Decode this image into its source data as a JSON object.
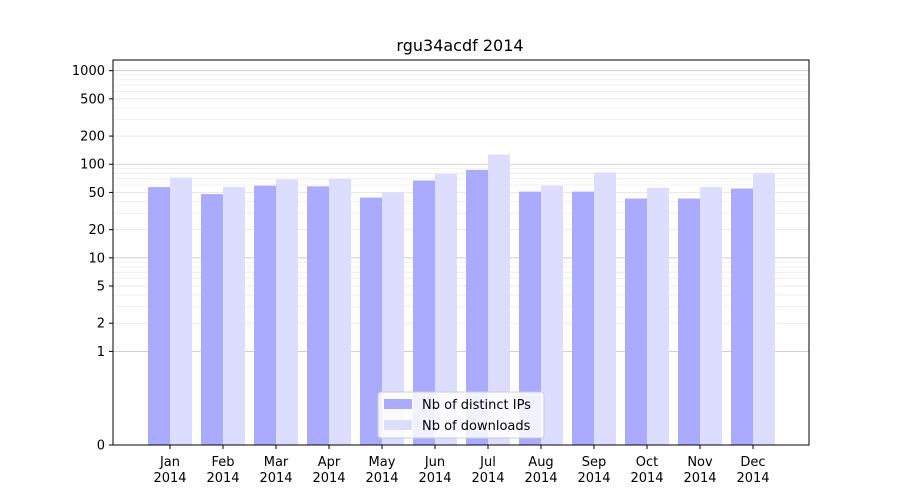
{
  "chart_data": {
    "type": "bar",
    "title": "rgu34acdf 2014",
    "xlabel": "",
    "ylabel": "",
    "yscale": "symlog",
    "ylim": [
      0,
      1300
    ],
    "yticks": [
      0,
      1,
      2,
      5,
      10,
      20,
      50,
      100,
      200,
      500,
      1000
    ],
    "ytick_labels": [
      "0",
      "1",
      "2",
      "5",
      "10",
      "20",
      "50",
      "100",
      "200",
      "500",
      "1000"
    ],
    "categories": [
      {
        "month": "Jan",
        "year": "2014"
      },
      {
        "month": "Feb",
        "year": "2014"
      },
      {
        "month": "Mar",
        "year": "2014"
      },
      {
        "month": "Apr",
        "year": "2014"
      },
      {
        "month": "May",
        "year": "2014"
      },
      {
        "month": "Jun",
        "year": "2014"
      },
      {
        "month": "Jul",
        "year": "2014"
      },
      {
        "month": "Aug",
        "year": "2014"
      },
      {
        "month": "Sep",
        "year": "2014"
      },
      {
        "month": "Oct",
        "year": "2014"
      },
      {
        "month": "Nov",
        "year": "2014"
      },
      {
        "month": "Dec",
        "year": "2014"
      }
    ],
    "series": [
      {
        "name": "Nb of distinct IPs",
        "color": "#aaaaff",
        "values": [
          57,
          48,
          59,
          58,
          44,
          67,
          87,
          51,
          51,
          43,
          43,
          55
        ]
      },
      {
        "name": "Nb of downloads",
        "color": "#ddddff",
        "values": [
          72,
          57,
          69,
          70,
          50,
          79,
          127,
          59,
          82,
          56,
          57,
          81
        ]
      }
    ],
    "grid": true,
    "legend_position": "bottom-center"
  }
}
